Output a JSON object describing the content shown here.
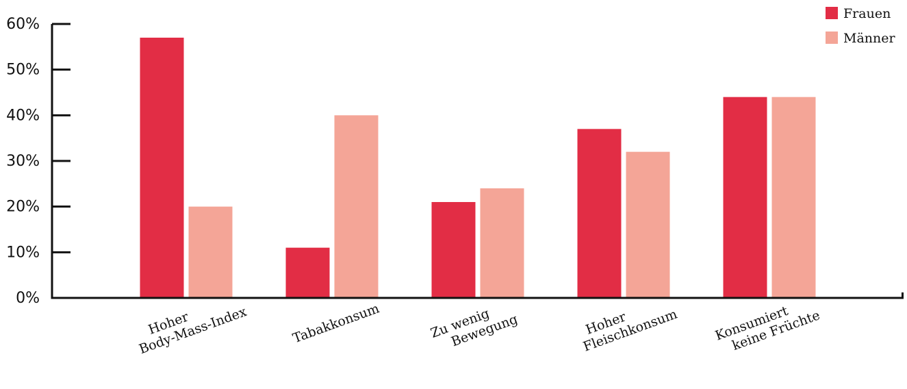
{
  "chart_data": {
    "type": "bar",
    "title": "",
    "xlabel": "",
    "ylabel": "",
    "categories": [
      [
        "Hoher",
        "Body-Mass-Index"
      ],
      [
        "Tabakkonsum"
      ],
      [
        "Zu wenig",
        "Bewegung"
      ],
      [
        "Hoher",
        "Fleischkonsum"
      ],
      [
        "Konsumiert",
        "keine Früchte"
      ]
    ],
    "series": [
      {
        "name": "Frauen",
        "color": "#e22d45",
        "values": [
          57,
          11,
          21,
          37,
          44
        ]
      },
      {
        "name": "Männer",
        "color": "#f4a597",
        "values": [
          20,
          40,
          24,
          32,
          44
        ]
      }
    ],
    "ylim": [
      0,
      60
    ],
    "yticks": [
      "0%",
      "10%",
      "20%",
      "30%",
      "40%",
      "50%",
      "60%"
    ],
    "grid": false,
    "legend": "top-right"
  }
}
